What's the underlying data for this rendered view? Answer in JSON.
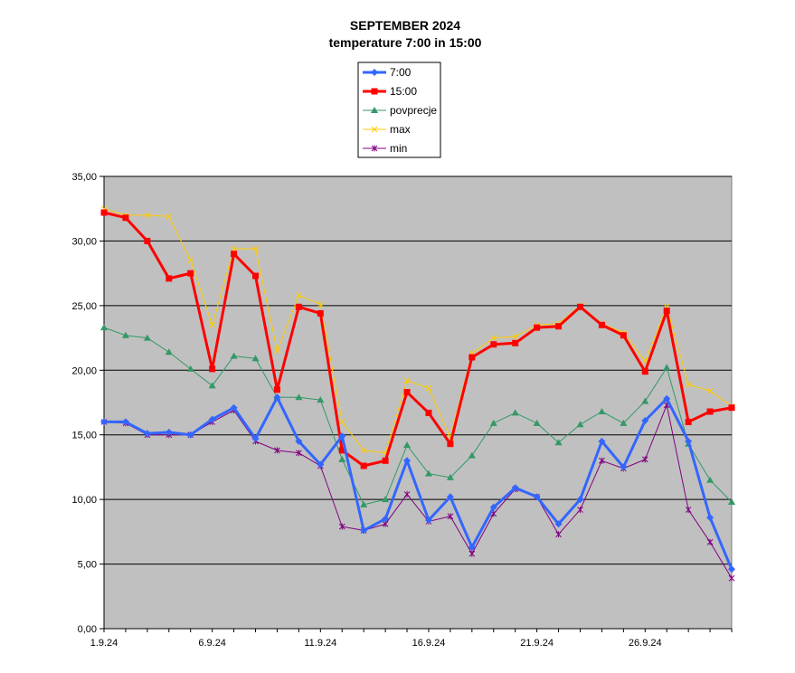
{
  "chart_data": {
    "type": "line",
    "title": "SEPTEMBER 2024",
    "subtitle": "temperature 7:00 in 15:00",
    "xlabel": "",
    "ylabel": "",
    "ylim": [
      0,
      35
    ],
    "y_ticks": [
      "0,00",
      "5,00",
      "10,00",
      "15,00",
      "20,00",
      "25,00",
      "30,00",
      "35,00"
    ],
    "y_tick_values": [
      0,
      5,
      10,
      15,
      20,
      25,
      30,
      35
    ],
    "x_ticks": [
      {
        "day": 1,
        "label": "1.9.24"
      },
      {
        "day": 6,
        "label": "6.9.24"
      },
      {
        "day": 11,
        "label": "11.9.24"
      },
      {
        "day": 16,
        "label": "16.9.24"
      },
      {
        "day": 21,
        "label": "21.9.24"
      },
      {
        "day": 26,
        "label": "26.9.24"
      }
    ],
    "x": [
      1,
      2,
      3,
      4,
      5,
      6,
      7,
      8,
      9,
      10,
      11,
      12,
      13,
      14,
      15,
      16,
      17,
      18,
      19,
      20,
      21,
      22,
      23,
      24,
      25,
      26,
      27,
      28,
      29,
      30
    ],
    "grid": "horizontal",
    "plot_background": "#c0c0c0",
    "legend_position": "top-center",
    "series": [
      {
        "name": "7:00",
        "color": "#3366ff",
        "marker": "diamond",
        "width": 3,
        "values": [
          16.0,
          16.0,
          15.1,
          15.2,
          15.0,
          16.2,
          17.1,
          14.7,
          17.9,
          14.5,
          12.7,
          14.9,
          7.6,
          8.5,
          13.0,
          8.4,
          10.2,
          6.3,
          9.4,
          10.9,
          10.2,
          8.1,
          10.0,
          14.5,
          12.5,
          16.1,
          17.8,
          14.5,
          8.6,
          4.6
        ]
      },
      {
        "name": "15:00",
        "color": "#ff0000",
        "marker": "square",
        "width": 3,
        "values": [
          32.2,
          31.8,
          30.0,
          27.1,
          27.5,
          20.1,
          29.0,
          27.3,
          18.5,
          24.9,
          24.4,
          13.8,
          12.6,
          13.0,
          18.3,
          16.7,
          14.3,
          21.0,
          22.0,
          22.1,
          23.3,
          23.4,
          24.9,
          23.5,
          22.7,
          19.9,
          24.6,
          16.0,
          16.8,
          17.1
        ]
      },
      {
        "name": "povprecje",
        "color": "#339966",
        "marker": "triangle",
        "width": 1,
        "values": [
          23.3,
          22.7,
          22.5,
          21.4,
          20.1,
          18.8,
          21.1,
          20.9,
          17.9,
          17.9,
          17.7,
          13.1,
          9.6,
          10.0,
          14.2,
          12.0,
          11.7,
          13.4,
          15.9,
          16.7,
          15.9,
          14.4,
          15.8,
          16.8,
          15.9,
          17.6,
          20.2,
          14.3,
          11.5,
          9.8
        ]
      },
      {
        "name": "max",
        "color": "#ffcc00",
        "marker": "x",
        "width": 1,
        "values": [
          32.5,
          32.0,
          32.0,
          31.9,
          28.5,
          23.5,
          29.4,
          29.4,
          21.5,
          25.8,
          25.1,
          16.0,
          13.8,
          13.6,
          19.2,
          18.6,
          14.8,
          21.3,
          22.5,
          22.6,
          23.5,
          23.6,
          25.0,
          23.6,
          22.9,
          20.7,
          24.9,
          18.9,
          18.4,
          17.2
        ]
      },
      {
        "name": "min",
        "color": "#800080",
        "marker": "star",
        "width": 1,
        "values": [
          16.0,
          15.9,
          15.0,
          15.0,
          15.0,
          16.0,
          16.9,
          14.5,
          13.8,
          13.6,
          12.6,
          7.9,
          7.6,
          8.1,
          10.4,
          8.3,
          8.7,
          5.8,
          8.9,
          10.8,
          10.2,
          7.3,
          9.2,
          13.0,
          12.4,
          13.1,
          17.3,
          9.2,
          6.7,
          3.9
        ]
      }
    ]
  }
}
